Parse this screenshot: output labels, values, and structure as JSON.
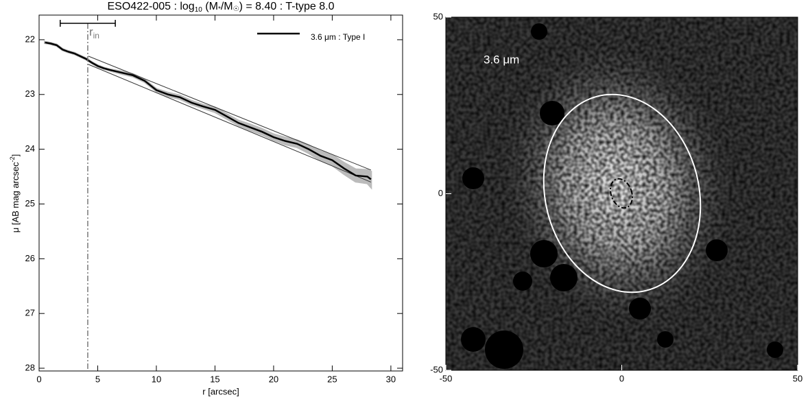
{
  "chart_data": [
    {
      "type": "line",
      "title_parts": [
        "ESO422-005 : log",
        "10",
        " (M",
        "*",
        "/M",
        "☉",
        ") = 8.40 : T-type 8.0"
      ],
      "xlabel": "r [arcsec]",
      "ylabel_parts": [
        "μ [AB mag arcsec",
        "-2",
        "]"
      ],
      "xlim": [
        0,
        31
      ],
      "xticks": [
        0,
        5,
        10,
        15,
        20,
        25,
        30
      ],
      "ylim": [
        28.05,
        21.55
      ],
      "yticks": [
        22,
        23,
        24,
        25,
        26,
        27,
        28
      ],
      "legend": "upper right",
      "series": [
        {
          "name": "3.6 μm : Type I",
          "color": "#000000",
          "band_color": "#bbbbbb",
          "x": [
            0.5,
            1,
            1.5,
            2,
            2.5,
            3,
            3.5,
            4,
            4.5,
            5,
            5.5,
            6,
            7,
            8,
            9,
            10,
            11,
            12,
            13,
            14,
            15,
            16,
            17,
            18,
            19,
            20,
            21,
            22,
            23,
            24,
            25,
            26,
            27,
            28,
            28.3
          ],
          "values": [
            22.05,
            22.07,
            22.1,
            22.18,
            22.22,
            22.25,
            22.3,
            22.35,
            22.42,
            22.48,
            22.52,
            22.55,
            22.6,
            22.65,
            22.75,
            22.92,
            23.0,
            23.05,
            23.15,
            23.22,
            23.28,
            23.4,
            23.52,
            23.6,
            23.68,
            23.78,
            23.85,
            23.9,
            24.0,
            24.12,
            24.2,
            24.35,
            24.48,
            24.5,
            24.55
          ],
          "errors": [
            0.01,
            0.01,
            0.01,
            0.01,
            0.01,
            0.01,
            0.01,
            0.01,
            0.01,
            0.01,
            0.01,
            0.01,
            0.02,
            0.02,
            0.02,
            0.02,
            0.03,
            0.03,
            0.03,
            0.03,
            0.04,
            0.04,
            0.04,
            0.05,
            0.05,
            0.05,
            0.06,
            0.06,
            0.07,
            0.08,
            0.09,
            0.1,
            0.11,
            0.12,
            0.14
          ]
        }
      ],
      "fits": [
        {
          "x": [
            4.2,
            28.3
          ],
          "values": [
            22.3,
            24.38
          ]
        },
        {
          "x": [
            4.2,
            28.3
          ],
          "values": [
            22.45,
            24.6
          ]
        }
      ],
      "r_in": {
        "value": 4.15,
        "label": "r",
        "sub": "in"
      },
      "range_bar": {
        "x": [
          1.8,
          6.5
        ],
        "y": 21.7
      }
    },
    {
      "type": "image",
      "label": "3.6 μm",
      "xlim": [
        -50,
        50
      ],
      "xticks": [
        -50,
        0,
        50
      ],
      "ylim": [
        -50,
        50
      ],
      "yticks": [
        -50,
        0,
        50
      ]
    }
  ]
}
